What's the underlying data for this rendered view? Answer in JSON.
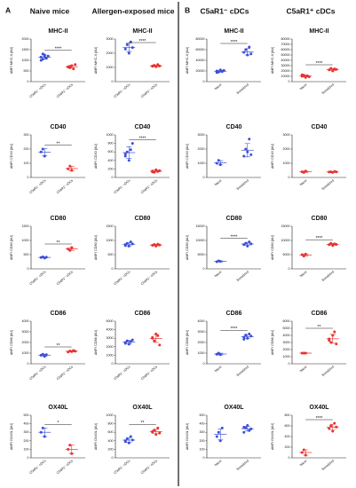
{
  "panel_labels": [
    "A",
    "B"
  ],
  "headers": [
    "Naive mice",
    "Allergen-exposed mice",
    "C5aR1⁻ cDCs",
    "C5aR1⁺ cDCs"
  ],
  "header_colors": [
    "#111111",
    "#111111",
    "#2a49d6",
    "#e3241f"
  ],
  "chart_data": [
    {
      "type": "strip",
      "title": "MHC-II",
      "ylabel": "ΔMFI MHC-II [AU]",
      "categories": [
        "C5aR1⁻ cDCs",
        "C5aR1⁺ cDCs"
      ],
      "colors": [
        "#3a4fd8",
        "#e8322e"
      ],
      "groups": [
        [
          1150,
          1050,
          1250,
          1100,
          1200,
          1000,
          1300,
          1180
        ],
        [
          700,
          650,
          750,
          600,
          800,
          680,
          720
        ]
      ],
      "means": [
        1150,
        700
      ],
      "errors": [
        100,
        60
      ],
      "ylim": [
        0,
        2000
      ],
      "yticks": [
        0,
        500,
        1000,
        1500,
        2000
      ],
      "sig": "****"
    },
    {
      "type": "strip",
      "title": "MHC-II",
      "ylabel": "ΔMFI MHC-II [AU]",
      "categories": [
        "C5aR1⁻ cDCs",
        "C5aR1⁺ cDCs"
      ],
      "colors": [
        "#3a4fd8",
        "#e8322e"
      ],
      "groups": [
        [
          2300,
          2600,
          2000,
          2800,
          2400
        ],
        [
          1100,
          1150,
          1050,
          1200,
          1100,
          1080
        ]
      ],
      "means": [
        2420,
        1110
      ],
      "errors": [
        300,
        50
      ],
      "ylim": [
        0,
        3000
      ],
      "yticks": [
        0,
        1000,
        2000,
        3000
      ],
      "sig": "****"
    },
    {
      "type": "strip",
      "title": "MHC-II",
      "ylabel": "ΔMFI MHC-II [AU]",
      "categories": [
        "Naive",
        "Sensitized"
      ],
      "colors": [
        "#3a4fd8",
        "#3a4fd8"
      ],
      "groups": [
        [
          20000,
          18000,
          22000,
          19000,
          21000,
          17000
        ],
        [
          55000,
          60000,
          50000,
          65000,
          52000
        ]
      ],
      "means": [
        19500,
        56000
      ],
      "errors": [
        1800,
        6000
      ],
      "ylim": [
        0,
        80000
      ],
      "yticks": [
        0,
        20000,
        40000,
        60000,
        80000
      ],
      "sig": "****"
    },
    {
      "type": "strip",
      "title": "MHC-II",
      "ylabel": "ΔMFI MHC-II [AU]",
      "categories": [
        "Naive",
        "Sensitized"
      ],
      "colors": [
        "#e8322e",
        "#e8322e"
      ],
      "groups": [
        [
          10000,
          12000,
          8000,
          11000,
          9000,
          13000,
          10500
        ],
        [
          22000,
          25000,
          20000,
          24000,
          23000
        ]
      ],
      "means": [
        10500,
        22800
      ],
      "errors": [
        1700,
        1900
      ],
      "ylim": [
        0,
        80000
      ],
      "yticks": [
        0,
        10000,
        20000,
        30000,
        40000,
        50000,
        60000,
        70000,
        80000
      ],
      "sig": "****"
    },
    {
      "type": "strip",
      "title": "CD40",
      "ylabel": "ΔMFI CD40 [AU]",
      "categories": [
        "C5aR1⁻ cDCs",
        "C5aR1⁺ cDCs"
      ],
      "colors": [
        "#3a4fd8",
        "#e8322e"
      ],
      "groups": [
        [
          180,
          200,
          150
        ],
        [
          60,
          80,
          50
        ]
      ],
      "means": [
        177,
        63
      ],
      "errors": [
        25,
        15
      ],
      "ylim": [
        0,
        300
      ],
      "yticks": [
        0,
        100,
        200,
        300
      ],
      "sig": "**"
    },
    {
      "type": "strip",
      "title": "CD40",
      "ylabel": "ΔMFI CD40 [AU]",
      "categories": [
        "C5aR1⁻ cDCs",
        "C5aR1⁺ cDCs"
      ],
      "colors": [
        "#3a4fd8",
        "#e8322e"
      ],
      "groups": [
        [
          500,
          600,
          400,
          650,
          800,
          550
        ],
        [
          150,
          120,
          180,
          140,
          160,
          130
        ]
      ],
      "means": [
        583,
        147
      ],
      "errors": [
        140,
        22
      ],
      "ylim": [
        0,
        1000
      ],
      "yticks": [
        0,
        200,
        400,
        600,
        800,
        1000
      ],
      "sig": "****"
    },
    {
      "type": "strip",
      "title": "CD40",
      "ylabel": "ΔMFI CD40 [AU]",
      "categories": [
        "Naive",
        "Sensitized"
      ],
      "colors": [
        "#3a4fd8",
        "#3a4fd8"
      ],
      "groups": [
        [
          1000,
          1200,
          900
        ],
        [
          1500,
          2000,
          1800,
          2700,
          1600
        ]
      ],
      "means": [
        1033,
        1920
      ],
      "errors": [
        150,
        470
      ],
      "ylim": [
        0,
        3000
      ],
      "yticks": [
        0,
        1000,
        2000,
        3000
      ]
    },
    {
      "type": "strip",
      "title": "CD40",
      "ylabel": "ΔMFI CD40 [AU]",
      "categories": [
        "Naive",
        "Sensitized"
      ],
      "colors": [
        "#e8322e",
        "#e8322e"
      ],
      "groups": [
        [
          400,
          350,
          450
        ],
        [
          380,
          400,
          350,
          420,
          390
        ]
      ],
      "means": [
        400,
        388
      ],
      "errors": [
        50,
        26
      ],
      "ylim": [
        0,
        3000
      ],
      "yticks": [
        0,
        1000,
        2000,
        3000
      ]
    },
    {
      "type": "strip",
      "title": "CD80",
      "ylabel": "ΔMFI CD80 [AU]",
      "categories": [
        "C5aR1⁻ cDCs",
        "C5aR1⁺ cDCs"
      ],
      "colors": [
        "#3a4fd8",
        "#e8322e"
      ],
      "groups": [
        [
          400,
          420,
          380,
          410
        ],
        [
          700,
          650,
          750
        ]
      ],
      "means": [
        403,
        700
      ],
      "errors": [
        17,
        50
      ],
      "ylim": [
        0,
        1500
      ],
      "yticks": [
        0,
        500,
        1000,
        1500
      ],
      "sig": "**"
    },
    {
      "type": "strip",
      "title": "CD80",
      "ylabel": "ΔMFI CD80 [AU]",
      "categories": [
        "C5aR1⁻ cDCs",
        "C5aR1⁺ cDCs"
      ],
      "colors": [
        "#3a4fd8",
        "#e8322e"
      ],
      "groups": [
        [
          850,
          900,
          800,
          950,
          880,
          820
        ],
        [
          830,
          860,
          800,
          870,
          840
        ]
      ],
      "means": [
        867,
        840
      ],
      "errors": [
        55,
        27
      ],
      "ylim": [
        0,
        1500
      ],
      "yticks": [
        0,
        500,
        1000,
        1500
      ]
    },
    {
      "type": "strip",
      "title": "CD80",
      "ylabel": "ΔMFI CD80 [AU]",
      "categories": [
        "Naive",
        "Sensitized"
      ],
      "colors": [
        "#3a4fd8",
        "#3a4fd8"
      ],
      "groups": [
        [
          2500,
          2800,
          2600
        ],
        [
          8500,
          9000,
          8000,
          9500,
          8800
        ]
      ],
      "means": [
        2633,
        8760
      ],
      "errors": [
        150,
        560
      ],
      "ylim": [
        0,
        15000
      ],
      "yticks": [
        0,
        5000,
        10000,
        15000
      ],
      "sig": "****"
    },
    {
      "type": "strip",
      "title": "CD80",
      "ylabel": "ΔMFI CD80 [AU]",
      "categories": [
        "Naive",
        "Sensitized"
      ],
      "colors": [
        "#e8322e",
        "#e8322e"
      ],
      "groups": [
        [
          5000,
          4500,
          5200
        ],
        [
          8500,
          9000,
          8200,
          8800,
          8600
        ]
      ],
      "means": [
        4900,
        8620
      ],
      "errors": [
        360,
        300
      ],
      "ylim": [
        0,
        15000
      ],
      "yticks": [
        0,
        5000,
        10000,
        15000
      ],
      "sig": "****"
    },
    {
      "type": "strip",
      "title": "CD86",
      "ylabel": "ΔMFI CD86 [AU]",
      "categories": [
        "C5aR1⁻ cDCs",
        "C5aR1⁺ cDCs"
      ],
      "colors": [
        "#3a4fd8",
        "#e8322e"
      ],
      "groups": [
        [
          800,
          900,
          700,
          850
        ],
        [
          1100,
          1200,
          1150,
          1250,
          1180
        ]
      ],
      "means": [
        813,
        1176
      ],
      "errors": [
        85,
        55
      ],
      "ylim": [
        0,
        4000
      ],
      "yticks": [
        0,
        1000,
        2000,
        3000,
        4000
      ],
      "sig": "**"
    },
    {
      "type": "strip",
      "title": "CD86",
      "ylabel": "ΔMFI CD86 [AU]",
      "categories": [
        "C5aR1⁻ cDCs",
        "C5aR1⁺ cDCs"
      ],
      "colors": [
        "#3a4fd8",
        "#e8322e"
      ],
      "groups": [
        [
          2500,
          2700,
          2300,
          2600,
          2800,
          2400
        ],
        [
          3000,
          2700,
          3500,
          3300,
          2200,
          3100
        ]
      ],
      "means": [
        2550,
        2970
      ],
      "errors": [
        190,
        460
      ],
      "ylim": [
        0,
        5000
      ],
      "yticks": [
        0,
        1000,
        2000,
        3000,
        4000,
        5000
      ]
    },
    {
      "type": "strip",
      "title": "CD86",
      "ylabel": "ΔMFI CD86 [AU]",
      "categories": [
        "Naive",
        "Sensitized"
      ],
      "colors": [
        "#3a4fd8",
        "#3a4fd8"
      ],
      "groups": [
        [
          900,
          1000,
          850
        ],
        [
          2500,
          2700,
          2400,
          2800,
          2600,
          2300
        ]
      ],
      "means": [
        917,
        2550
      ],
      "errors": [
        75,
        190
      ],
      "ylim": [
        0,
        4000
      ],
      "yticks": [
        0,
        1000,
        2000,
        3000,
        4000
      ],
      "sig": "****"
    },
    {
      "type": "strip",
      "title": "CD86",
      "ylabel": "ΔMFI CD86 [AU]",
      "categories": [
        "Naive",
        "Sensitized"
      ],
      "colors": [
        "#e8322e",
        "#e8322e"
      ],
      "groups": [
        [
          1500,
          1500,
          1500
        ],
        [
          3500,
          3000,
          4000,
          4500,
          2800,
          3300
        ]
      ],
      "means": [
        1500,
        3520
      ],
      "errors": [
        30,
        630
      ],
      "ylim": [
        0,
        6000
      ],
      "yticks": [
        0,
        1000,
        2000,
        3000,
        4000,
        5000,
        6000
      ],
      "sig": "**"
    },
    {
      "type": "strip",
      "title": "OX40L",
      "ylabel": "ΔMFI OX40L [AU]",
      "categories": [
        "C5aR1⁻ cDCs",
        "C5aR1⁺ cDCs"
      ],
      "colors": [
        "#3a4fd8",
        "#e8322e"
      ],
      "groups": [
        [
          300,
          350,
          250
        ],
        [
          100,
          150,
          50
        ]
      ],
      "means": [
        300,
        100
      ],
      "errors": [
        50,
        50
      ],
      "ylim": [
        0,
        500
      ],
      "yticks": [
        0,
        100,
        200,
        300,
        400,
        500
      ],
      "sig": "*"
    },
    {
      "type": "strip",
      "title": "OX40L",
      "ylabel": "ΔMFI OX40L [AU]",
      "categories": [
        "C5aR1⁻ cDCs",
        "C5aR1⁺ cDCs"
      ],
      "colors": [
        "#3a4fd8",
        "#e8322e"
      ],
      "groups": [
        [
          400,
          450,
          350,
          500,
          420,
          380
        ],
        [
          600,
          650,
          550,
          700,
          580,
          620
        ]
      ],
      "means": [
        417,
        617
      ],
      "errors": [
        52,
        52
      ],
      "ylim": [
        0,
        1000
      ],
      "yticks": [
        0,
        200,
        400,
        600,
        800,
        1000
      ],
      "sig": "**"
    },
    {
      "type": "strip",
      "title": "OX40L",
      "ylabel": "ΔMFI OX40L [AU]",
      "categories": [
        "Naive",
        "Sensitized"
      ],
      "colors": [
        "#3a4fd8",
        "#3a4fd8"
      ],
      "groups": [
        [
          250,
          300,
          200,
          350
        ],
        [
          300,
          350,
          380,
          320,
          340,
          360
        ]
      ],
      "means": [
        275,
        342
      ],
      "errors": [
        65,
        28
      ],
      "ylim": [
        0,
        500
      ],
      "yticks": [
        0,
        100,
        200,
        300,
        400,
        500
      ]
    },
    {
      "type": "strip",
      "title": "OX40L",
      "ylabel": "ΔMFI OX40L [AU]",
      "categories": [
        "Naive",
        "Sensitized"
      ],
      "colors": [
        "#e8322e",
        "#e8322e"
      ],
      "groups": [
        [
          100,
          150,
          50
        ],
        [
          550,
          600,
          500,
          650,
          580
        ]
      ],
      "means": [
        100,
        576
      ],
      "errors": [
        50,
        55
      ],
      "ylim": [
        0,
        800
      ],
      "yticks": [
        0,
        200,
        400,
        600,
        800
      ],
      "sig": "****"
    }
  ]
}
